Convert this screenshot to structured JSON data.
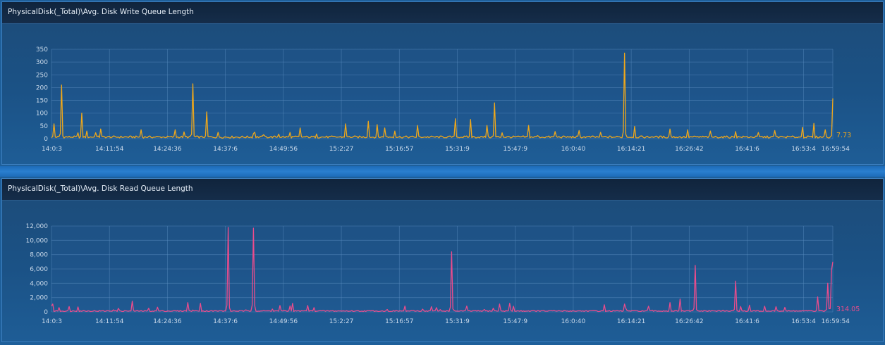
{
  "charts": [
    {
      "title": "PhysicalDisk(_Total)\\Avg. Disk Write Queue Length",
      "color": "#f0a81a",
      "last_value_label": "7.73",
      "ylim": [
        0,
        350
      ],
      "yticks": [
        "0",
        "50",
        "100",
        "150",
        "200",
        "250",
        "300",
        "350"
      ],
      "ytick_values": [
        0,
        50,
        100,
        150,
        200,
        250,
        300,
        350
      ],
      "xticks": [
        "14:0:3",
        "14:11:54",
        "14:24:36",
        "14:37:6",
        "14:49:56",
        "15:2:27",
        "15:16:57",
        "15:31:9",
        "15:47:9",
        "16:0:40",
        "16:14:21",
        "16:26:42",
        "16:41:6",
        "16:53:4",
        "16:59:54"
      ],
      "baseline": 6,
      "spikes": [
        [
          0.3,
          58
        ],
        [
          1.3,
          210
        ],
        [
          3.9,
          100
        ],
        [
          4.5,
          30
        ],
        [
          6.3,
          38
        ],
        [
          11.4,
          35
        ],
        [
          15.9,
          35
        ],
        [
          18.1,
          215
        ],
        [
          19.9,
          105
        ],
        [
          21.4,
          25
        ],
        [
          25.8,
          20
        ],
        [
          29.1,
          18
        ],
        [
          31.9,
          42
        ],
        [
          37.6,
          58
        ],
        [
          40.5,
          68
        ],
        [
          41.7,
          55
        ],
        [
          42.6,
          42
        ],
        [
          43.9,
          30
        ],
        [
          46.9,
          52
        ],
        [
          51.7,
          78
        ],
        [
          53.6,
          75
        ],
        [
          55.7,
          52
        ],
        [
          56.7,
          140
        ],
        [
          61.1,
          52
        ],
        [
          64.5,
          28
        ],
        [
          67.5,
          32
        ],
        [
          70.2,
          25
        ],
        [
          73.3,
          335
        ],
        [
          74.6,
          48
        ],
        [
          79.1,
          38
        ],
        [
          81.5,
          35
        ],
        [
          84.4,
          30
        ],
        [
          87.5,
          28
        ],
        [
          92.5,
          32
        ],
        [
          96.2,
          45
        ],
        [
          97.5,
          60
        ],
        [
          99.0,
          35
        ],
        [
          100,
          158
        ]
      ],
      "chart_data": {
        "type": "line",
        "series": [
          {
            "values": [
              6,
              58,
              210,
              100,
              30,
              38,
              35,
              35,
              215,
              105,
              25,
              20,
              18,
              42,
              58,
              68,
              55,
              42,
              30,
              52,
              78,
              75,
              52,
              140,
              52,
              28,
              32,
              25,
              335,
              48,
              38,
              35,
              30,
              28,
              32,
              45,
              60,
              35,
              158,
              7.73
            ]
          }
        ]
      }
    },
    {
      "title": "PhysicalDisk(_Total)\\Avg. Disk Read Queue Length",
      "color": "#ec4c8c",
      "last_value_label": "314.05",
      "ylim": [
        0,
        12000
      ],
      "yticks": [
        "0",
        "2,000",
        "4,000",
        "6,000",
        "8,000",
        "10,000",
        "12,000"
      ],
      "ytick_values": [
        0,
        2000,
        4000,
        6000,
        8000,
        10000,
        12000
      ],
      "xticks": [
        "14:0:3",
        "14:11:54",
        "14:24:36",
        "14:37:6",
        "14:49:56",
        "15:2:27",
        "15:16:57",
        "15:31:9",
        "15:47:9",
        "16:0:40",
        "16:14:21",
        "16:26:42",
        "16:41:6",
        "16:53:4",
        "16:59:54"
      ],
      "baseline": 120,
      "spikes": [
        [
          0.2,
          1100
        ],
        [
          0.9,
          600
        ],
        [
          3.4,
          700
        ],
        [
          8.5,
          500
        ],
        [
          10.4,
          1500
        ],
        [
          17.5,
          1300
        ],
        [
          19.0,
          1200
        ],
        [
          22.6,
          11800
        ],
        [
          25.9,
          11700
        ],
        [
          29.2,
          900
        ],
        [
          30.8,
          1200
        ],
        [
          33.6,
          600
        ],
        [
          49.2,
          600
        ],
        [
          51.2,
          8400
        ],
        [
          57.3,
          1100
        ],
        [
          58.6,
          1200
        ],
        [
          59.2,
          800
        ],
        [
          70.7,
          1000
        ],
        [
          73.3,
          1100
        ],
        [
          76.4,
          800
        ],
        [
          79.2,
          1300
        ],
        [
          80.5,
          1800
        ],
        [
          82.4,
          6500
        ],
        [
          87.5,
          4300
        ],
        [
          91.2,
          800
        ],
        [
          98.1,
          2100
        ],
        [
          99.3,
          4000
        ],
        [
          99.9,
          5900
        ],
        [
          100,
          7000
        ]
      ],
      "chart_data": {
        "type": "line",
        "series": [
          {
            "values": [
              120,
              1100,
              600,
              700,
              500,
              1500,
              1300,
              1200,
              11800,
              11700,
              900,
              1200,
              600,
              600,
              8400,
              1100,
              1200,
              800,
              1000,
              1100,
              800,
              1300,
              1800,
              6500,
              4300,
              800,
              2100,
              4000,
              5900,
              7000,
              8500,
              6800,
              8000,
              314.05
            ]
          }
        ]
      }
    }
  ]
}
